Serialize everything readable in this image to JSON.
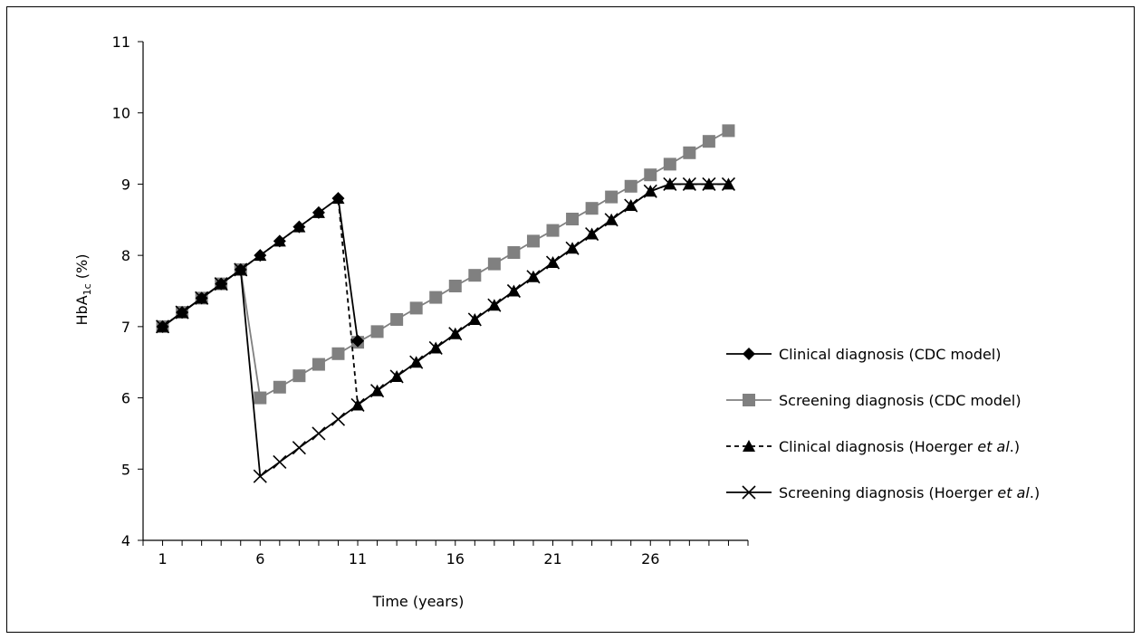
{
  "chart_data": {
    "type": "line",
    "title": "",
    "xlabel": "Time (years)",
    "ylabel": {
      "main": "HbA",
      "sub": "1c",
      "unit": " (%)"
    },
    "xlim": [
      0,
      31
    ],
    "ylim": [
      4,
      11
    ],
    "xticks": [
      1,
      6,
      11,
      16,
      21,
      26
    ],
    "yticks": [
      4,
      5,
      6,
      7,
      8,
      9,
      10,
      11
    ],
    "grid": false,
    "legend_position": "right",
    "series": [
      {
        "name_parts": [
          "Clinical diagnosis (CDC model)"
        ],
        "color": "#000000",
        "dashed": false,
        "marker": "diamond",
        "x": [
          1,
          2,
          3,
          4,
          5,
          6,
          7,
          8,
          9,
          10,
          11
        ],
        "y": [
          7.0,
          7.2,
          7.4,
          7.6,
          7.8,
          8.0,
          8.2,
          8.4,
          8.6,
          8.8,
          6.8
        ]
      },
      {
        "name_parts": [
          "Screening diagnosis (CDC model)"
        ],
        "color": "#808080",
        "dashed": false,
        "marker": "square",
        "x": [
          1,
          2,
          3,
          4,
          5,
          6,
          7,
          8,
          9,
          10,
          11,
          12,
          13,
          14,
          15,
          16,
          17,
          18,
          19,
          20,
          21,
          22,
          23,
          24,
          25,
          26,
          27,
          28,
          29,
          30
        ],
        "y": [
          7.0,
          7.2,
          7.4,
          7.6,
          7.8,
          6.0,
          6.15,
          6.31,
          6.47,
          6.62,
          6.78,
          6.93,
          7.1,
          7.26,
          7.41,
          7.57,
          7.72,
          7.88,
          8.04,
          8.2,
          8.35,
          8.51,
          8.66,
          8.82,
          8.97,
          9.13,
          9.28,
          9.44,
          9.6,
          9.75
        ]
      },
      {
        "name_parts": [
          "Clinical diagnosis (Hoerger ",
          "et al",
          ".)"
        ],
        "color": "#000000",
        "dashed": true,
        "marker": "triangle",
        "x": [
          1,
          2,
          3,
          4,
          5,
          6,
          7,
          8,
          9,
          10,
          11,
          12,
          13,
          14,
          15,
          16,
          17,
          18,
          19,
          20,
          21,
          22,
          23,
          24,
          25,
          26,
          27,
          28,
          29,
          30
        ],
        "y": [
          7.0,
          7.2,
          7.4,
          7.6,
          7.8,
          8.0,
          8.2,
          8.4,
          8.6,
          8.8,
          5.9,
          6.1,
          6.3,
          6.5,
          6.7,
          6.9,
          7.1,
          7.3,
          7.5,
          7.7,
          7.9,
          8.1,
          8.3,
          8.5,
          8.7,
          8.9,
          9.0,
          9.0,
          9.0,
          9.0
        ]
      },
      {
        "name_parts": [
          "Screening diagnosis (Hoerger ",
          "et al",
          ".)"
        ],
        "color": "#000000",
        "dashed": false,
        "marker": "x",
        "x": [
          1,
          2,
          3,
          4,
          5,
          6,
          7,
          8,
          9,
          10,
          11,
          12,
          13,
          14,
          15,
          16,
          17,
          18,
          19,
          20,
          21,
          22,
          23,
          24,
          25,
          26,
          27,
          28,
          29,
          30
        ],
        "y": [
          7.0,
          7.2,
          7.4,
          7.6,
          7.8,
          4.9,
          5.1,
          5.3,
          5.5,
          5.7,
          5.9,
          6.1,
          6.3,
          6.5,
          6.7,
          6.9,
          7.1,
          7.3,
          7.5,
          7.7,
          7.9,
          8.1,
          8.3,
          8.5,
          8.7,
          8.9,
          9.0,
          9.0,
          9.0,
          9.0
        ]
      }
    ]
  }
}
